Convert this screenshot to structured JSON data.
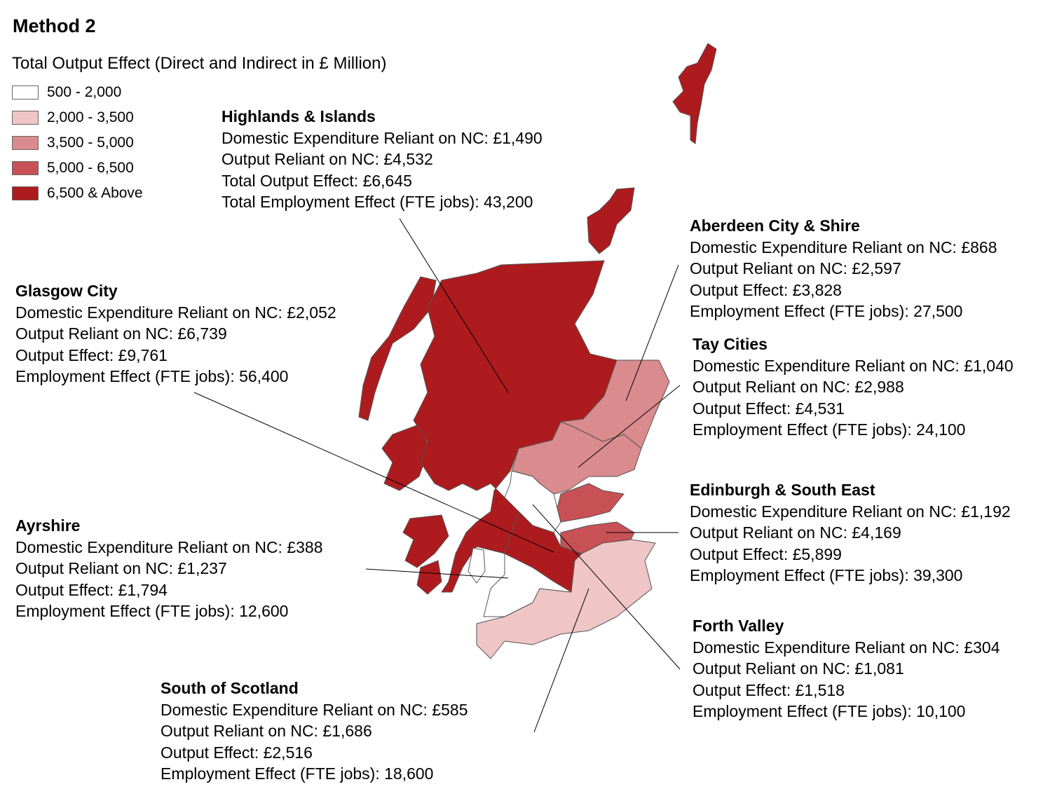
{
  "title": "Method 2",
  "legend": {
    "title": "Total Output Effect (Direct and Indirect in £ Million)",
    "items": [
      {
        "label": "500 - 2,000",
        "color": "#ffffff"
      },
      {
        "label": "2,000 - 3,500",
        "color": "#efc5c5"
      },
      {
        "label": "3,500 - 5,000",
        "color": "#d98b8d"
      },
      {
        "label": "5,000 - 6,500",
        "color": "#c75155"
      },
      {
        "label": "6,500 & Above",
        "color": "#ad1b1e"
      }
    ]
  },
  "regions": {
    "highlands": {
      "name": "Highlands & Islands",
      "l1": "Domestic Expenditure Reliant on NC: £1,490",
      "l2": "Output Reliant on NC: £4,532",
      "l3": "Total Output Effect: £6,645",
      "l4": "Total Employment Effect (FTE jobs): 43,200",
      "class": "6,500 & Above"
    },
    "aberdeen": {
      "name": "Aberdeen City & Shire",
      "l1": "Domestic Expenditure Reliant on NC: £868",
      "l2": "Output Reliant on NC: £2,597",
      "l3": "Output Effect: £3,828",
      "l4": "Employment Effect (FTE jobs): 27,500",
      "class": "3,500 - 5,000"
    },
    "glasgow": {
      "name": "Glasgow City",
      "l1": "Domestic Expenditure Reliant on NC: £2,052",
      "l2": "Output Reliant on NC: £6,739",
      "l3": "Output Effect: £9,761",
      "l4": "Employment Effect (FTE jobs): 56,400",
      "class": "6,500 & Above"
    },
    "tay": {
      "name": "Tay Cities",
      "l1": "Domestic Expenditure Reliant on NC: £1,040",
      "l2": "Output Reliant on NC: £2,988",
      "l3": "Output Effect: £4,531",
      "l4": "Employment Effect (FTE jobs): 24,100",
      "class": "3,500 - 5,000"
    },
    "edinburgh": {
      "name": "Edinburgh & South East",
      "l1": "Domestic Expenditure Reliant on NC: £1,192",
      "l2": "Output Reliant on NC: £4,169",
      "l3": "Output Effect: £5,899",
      "l4": "Employment Effect (FTE jobs): 39,300",
      "class": "5,000 - 6,500"
    },
    "ayrshire": {
      "name": "Ayrshire",
      "l1": "Domestic Expenditure Reliant on NC: £388",
      "l2": "Output Reliant on NC: £1,237",
      "l3": "Output Effect: £1,794",
      "l4": "Employment Effect (FTE jobs): 12,600",
      "class": "500 - 2,000"
    },
    "forth": {
      "name": "Forth Valley",
      "l1": "Domestic Expenditure Reliant on NC: £304",
      "l2": "Output Reliant on NC: £1,081",
      "l3": "Output Effect: £1,518",
      "l4": "Employment Effect (FTE jobs): 10,100",
      "class": "500 - 2,000"
    },
    "south": {
      "name": "South of Scotland",
      "l1": "Domestic Expenditure Reliant on NC: £585",
      "l2": "Output Reliant on NC: £1,686",
      "l3": "Output Effect: £2,516",
      "l4": "Employment Effect (FTE jobs): 18,600",
      "class": "2,000 - 3,500"
    }
  }
}
